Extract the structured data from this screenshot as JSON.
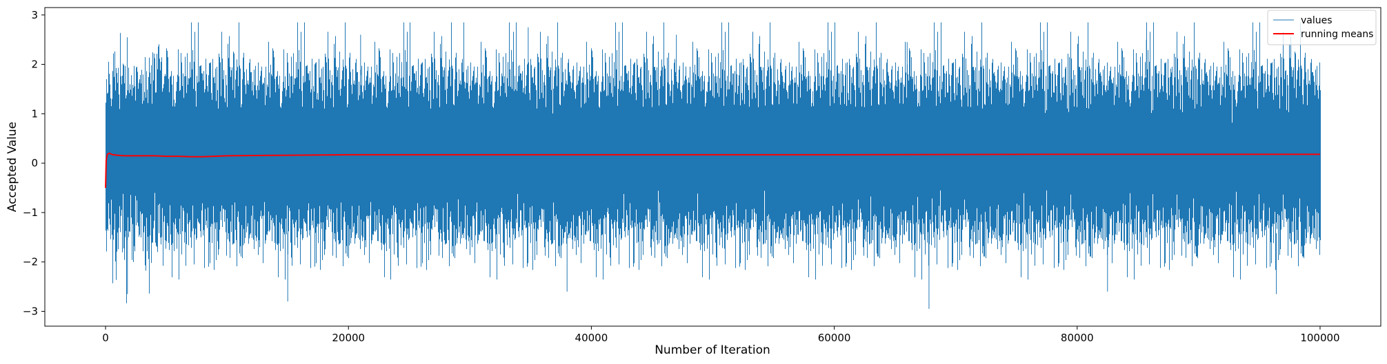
{
  "chart_data": {
    "type": "line",
    "title": "",
    "xlabel": "Number of Iteration",
    "ylabel": "Accepted Value",
    "xlim": [
      -5000,
      105000
    ],
    "ylim": [
      -3.3,
      3.15
    ],
    "xticks": [
      0,
      20000,
      40000,
      60000,
      80000,
      100000
    ],
    "xtick_labels": [
      "0",
      "20000",
      "40000",
      "60000",
      "80000",
      "100000"
    ],
    "yticks": [
      -3,
      -2,
      -1,
      0,
      1,
      2,
      3
    ],
    "ytick_labels": [
      "−3",
      "−2",
      "−1",
      "0",
      "1",
      "2",
      "3"
    ],
    "grid": false,
    "legend_position": "top-right",
    "series": [
      {
        "name": "values",
        "color": "#1f77b4",
        "n_points": 100000,
        "x_range": [
          0,
          100000
        ],
        "approx_mean": 0.18,
        "approx_std": 0.75,
        "approx_min": -2.95,
        "approx_max": 2.85,
        "notable_points": [
          {
            "x": 29500,
            "y": 2.85
          },
          {
            "x": 34800,
            "y": 2.75
          },
          {
            "x": 15000,
            "y": -2.8
          },
          {
            "x": 67800,
            "y": -2.95
          },
          {
            "x": 21000,
            "y": 2.6
          },
          {
            "x": 47000,
            "y": 2.6
          },
          {
            "x": 66000,
            "y": 2.45
          },
          {
            "x": 85700,
            "y": 2.5
          },
          {
            "x": 96400,
            "y": -2.65
          },
          {
            "x": 1800,
            "y": -2.65
          },
          {
            "x": 38000,
            "y": -2.6
          },
          {
            "x": 82500,
            "y": -2.6
          }
        ]
      },
      {
        "name": "running means",
        "color": "#ff0000",
        "x": [
          0,
          50,
          150,
          300,
          600,
          1000,
          1500,
          2000,
          3000,
          4000,
          5000,
          6000,
          7000,
          8000,
          10000,
          15000,
          20000,
          40000,
          60000,
          80000,
          100000
        ],
        "y": [
          -0.5,
          0.05,
          0.18,
          0.2,
          0.17,
          0.16,
          0.15,
          0.15,
          0.15,
          0.15,
          0.14,
          0.14,
          0.13,
          0.13,
          0.15,
          0.16,
          0.17,
          0.17,
          0.17,
          0.18,
          0.18
        ]
      }
    ]
  }
}
